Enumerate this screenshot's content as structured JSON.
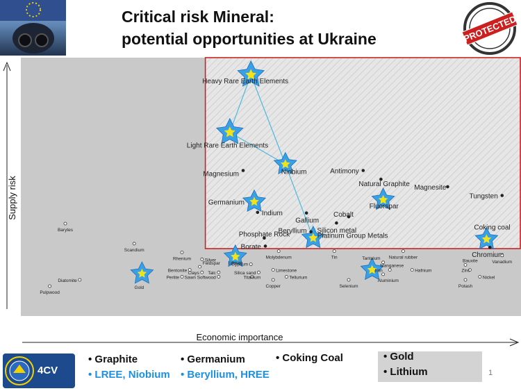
{
  "slide": {
    "title_line1": "Critical risk Mineral:",
    "title_line2": "potential opportunities at Ukraine",
    "stamp_text": "PROTECTED",
    "page_number": "1",
    "logo_text": "4CV"
  },
  "colors": {
    "star_fill": "#3aa0e6",
    "star_center": "#f2e21a",
    "line": "#4db8e0",
    "critical_box": "#cc2222",
    "plot_bg": "#c9c9c9",
    "highlight_blue": "#1e90e0"
  },
  "footer": {
    "col1": [
      "• Graphite",
      "• LREE,  Niobium"
    ],
    "col2": [
      "• Germanium",
      "• Beryllium, HREE"
    ],
    "col3": [
      "• Coking Coal"
    ],
    "col4": [
      "• Gold",
      "• Lithium"
    ]
  },
  "chart_data": {
    "type": "scatter",
    "xlabel": "Economic importance",
    "ylabel": "Supply risk",
    "grid": false,
    "critical_zone": "upper-right",
    "points": [
      {
        "label": "Heavy Rare Earth Elements",
        "x": 2.07,
        "y": 4.48,
        "star": true
      },
      {
        "label": "Light Rare Earth Elements",
        "x": 1.88,
        "y": 3.56,
        "star": true
      },
      {
        "label": "Niobium",
        "x": 2.38,
        "y": 3.05,
        "star": true
      },
      {
        "label": "Magnesium",
        "x": 2.0,
        "y": 2.95
      },
      {
        "label": "Antimony",
        "x": 3.08,
        "y": 2.95
      },
      {
        "label": "Natural Graphite",
        "x": 3.24,
        "y": 2.81
      },
      {
        "label": "Magnesite",
        "x": 3.84,
        "y": 2.69
      },
      {
        "label": "Tungsten",
        "x": 4.33,
        "y": 2.55
      },
      {
        "label": "Fluorspar",
        "x": 3.26,
        "y": 2.48,
        "star": true
      },
      {
        "label": "Germanium",
        "x": 2.1,
        "y": 2.45,
        "star": true
      },
      {
        "label": "Indium",
        "x": 2.13,
        "y": 2.28
      },
      {
        "label": "Gallium",
        "x": 2.57,
        "y": 2.27
      },
      {
        "label": "Cobalt",
        "x": 2.95,
        "y": 2.21
      },
      {
        "label": "Silicon metal",
        "x": 2.84,
        "y": 2.11
      },
      {
        "label": "Beryllium",
        "x": 2.61,
        "y": 1.97
      },
      {
        "label": "Phosphate Rock",
        "x": 2.19,
        "y": 1.87
      },
      {
        "label": "Platinum Group Metals",
        "x": 2.63,
        "y": 1.87,
        "star": true
      },
      {
        "label": "Coking coal",
        "x": 4.19,
        "y": 1.85,
        "star": true
      },
      {
        "label": "Borate",
        "x": 2.2,
        "y": 1.74
      },
      {
        "label": "Chromium",
        "x": 4.22,
        "y": 1.72
      },
      {
        "label": "Barytes",
        "x": 0.4,
        "y": 2.1
      },
      {
        "label": "Scandium",
        "x": 1.02,
        "y": 1.78
      },
      {
        "label": "Rhenium",
        "x": 1.45,
        "y": 1.64
      },
      {
        "label": "Silver",
        "x": 1.63,
        "y": 1.53
      },
      {
        "label": "Lithium",
        "x": 1.93,
        "y": 1.57,
        "star": true
      },
      {
        "label": "Gypsum",
        "x": 2.07,
        "y": 1.45
      },
      {
        "label": "Molybdenum",
        "x": 2.32,
        "y": 1.66
      },
      {
        "label": "Tin",
        "x": 2.82,
        "y": 1.66
      },
      {
        "label": "Natural rubber",
        "x": 3.44,
        "y": 1.66
      },
      {
        "label": "Tantalum",
        "x": 3.26,
        "y": 1.48
      },
      {
        "label": "Iron",
        "x": 3.16,
        "y": 1.36,
        "star": true
      },
      {
        "label": "Aluminium",
        "x": 3.26,
        "y": 1.29
      },
      {
        "label": "Manganese",
        "x": 3.32,
        "y": 1.36
      },
      {
        "label": "Hafnium",
        "x": 3.52,
        "y": 1.36
      },
      {
        "label": "Bauxite",
        "x": 4.0,
        "y": 1.44
      },
      {
        "label": "Zinc",
        "x": 4.04,
        "y": 1.36
      },
      {
        "label": "Vanadium",
        "x": 4.33,
        "y": 1.59
      },
      {
        "label": "Feldspar",
        "x": 1.61,
        "y": 1.41
      },
      {
        "label": "Bentonite",
        "x": 1.52,
        "y": 1.36
      },
      {
        "label": "Clays",
        "x": 1.63,
        "y": 1.32
      },
      {
        "label": "Talc",
        "x": 1.78,
        "y": 1.32
      },
      {
        "label": "Perlite",
        "x": 1.45,
        "y": 1.25
      },
      {
        "label": "Sawn Softwood",
        "x": 1.78,
        "y": 1.25
      },
      {
        "label": "Titanium",
        "x": 2.08,
        "y": 1.25
      },
      {
        "label": "Silica sand",
        "x": 2.14,
        "y": 1.32
      },
      {
        "label": "Limestone",
        "x": 2.27,
        "y": 1.36
      },
      {
        "label": "Tellurium",
        "x": 2.39,
        "y": 1.25
      },
      {
        "label": "Copper",
        "x": 2.27,
        "y": 1.2
      },
      {
        "label": "Selenium",
        "x": 2.95,
        "y": 1.2
      },
      {
        "label": "Potash",
        "x": 4.0,
        "y": 1.2
      },
      {
        "label": "Nickel",
        "x": 4.13,
        "y": 1.25
      },
      {
        "label": "Gold",
        "x": 1.09,
        "y": 1.3,
        "star": true
      },
      {
        "label": "Diatomite",
        "x": 0.53,
        "y": 1.2
      },
      {
        "label": "Pulpwood",
        "x": 0.26,
        "y": 1.1
      }
    ],
    "connections": [
      [
        "Heavy Rare Earth Elements",
        "Light Rare Earth Elements"
      ],
      [
        "Heavy Rare Earth Elements",
        "Niobium"
      ],
      [
        "Light Rare Earth Elements",
        "Niobium"
      ],
      [
        "Niobium",
        "Platinum Group Metals"
      ]
    ]
  }
}
